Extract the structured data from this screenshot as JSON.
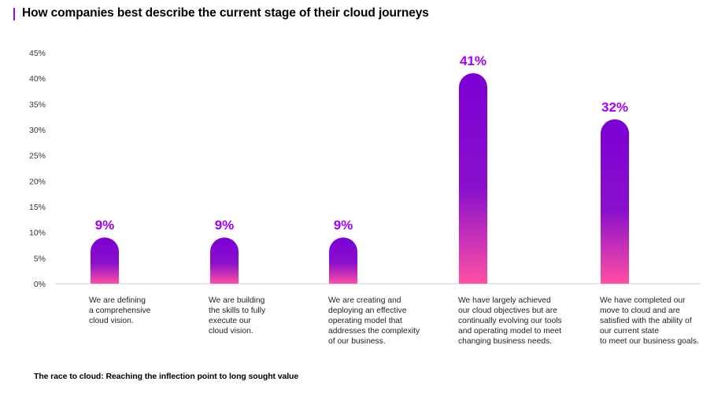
{
  "page": {
    "title": "How companies best describe the current stage of their cloud journeys",
    "footer": "The race to cloud:  Reaching the inflection point to long sought value"
  },
  "colors": {
    "accent": "#a100ff",
    "bar_top": "#7b00d4",
    "bar_bottom": "#ff4fa3",
    "axis": "#cccccc"
  },
  "chart_data": {
    "type": "bar",
    "title": "How companies best describe the current stage of their cloud journeys",
    "categories": [
      [
        "We are defining",
        "a comprehensive",
        "cloud vision."
      ],
      [
        "We are building",
        "the skills to fully",
        "execute our",
        "cloud vision."
      ],
      [
        "We are creating and",
        "deploying an effective",
        "operating model that",
        "addresses the complexity",
        "of our business."
      ],
      [
        "We have largely achieved",
        "our cloud objectives but are",
        "continually evolving our tools",
        "and operating model to meet",
        "changing business needs."
      ],
      [
        "We have completed our",
        "move to cloud and are",
        "satisfied with the ability of",
        "our current state",
        "to meet our business goals."
      ]
    ],
    "values": [
      9,
      9,
      9,
      41,
      32
    ],
    "value_labels": [
      "9%",
      "9%",
      "9%",
      "41%",
      "32%"
    ],
    "yticks": [
      "0%",
      "5%",
      "10%",
      "15%",
      "20%",
      "25%",
      "30%",
      "35%",
      "40%",
      "45%"
    ],
    "ylim": [
      0,
      45
    ],
    "xlabel": "",
    "ylabel": "",
    "grid": false
  }
}
